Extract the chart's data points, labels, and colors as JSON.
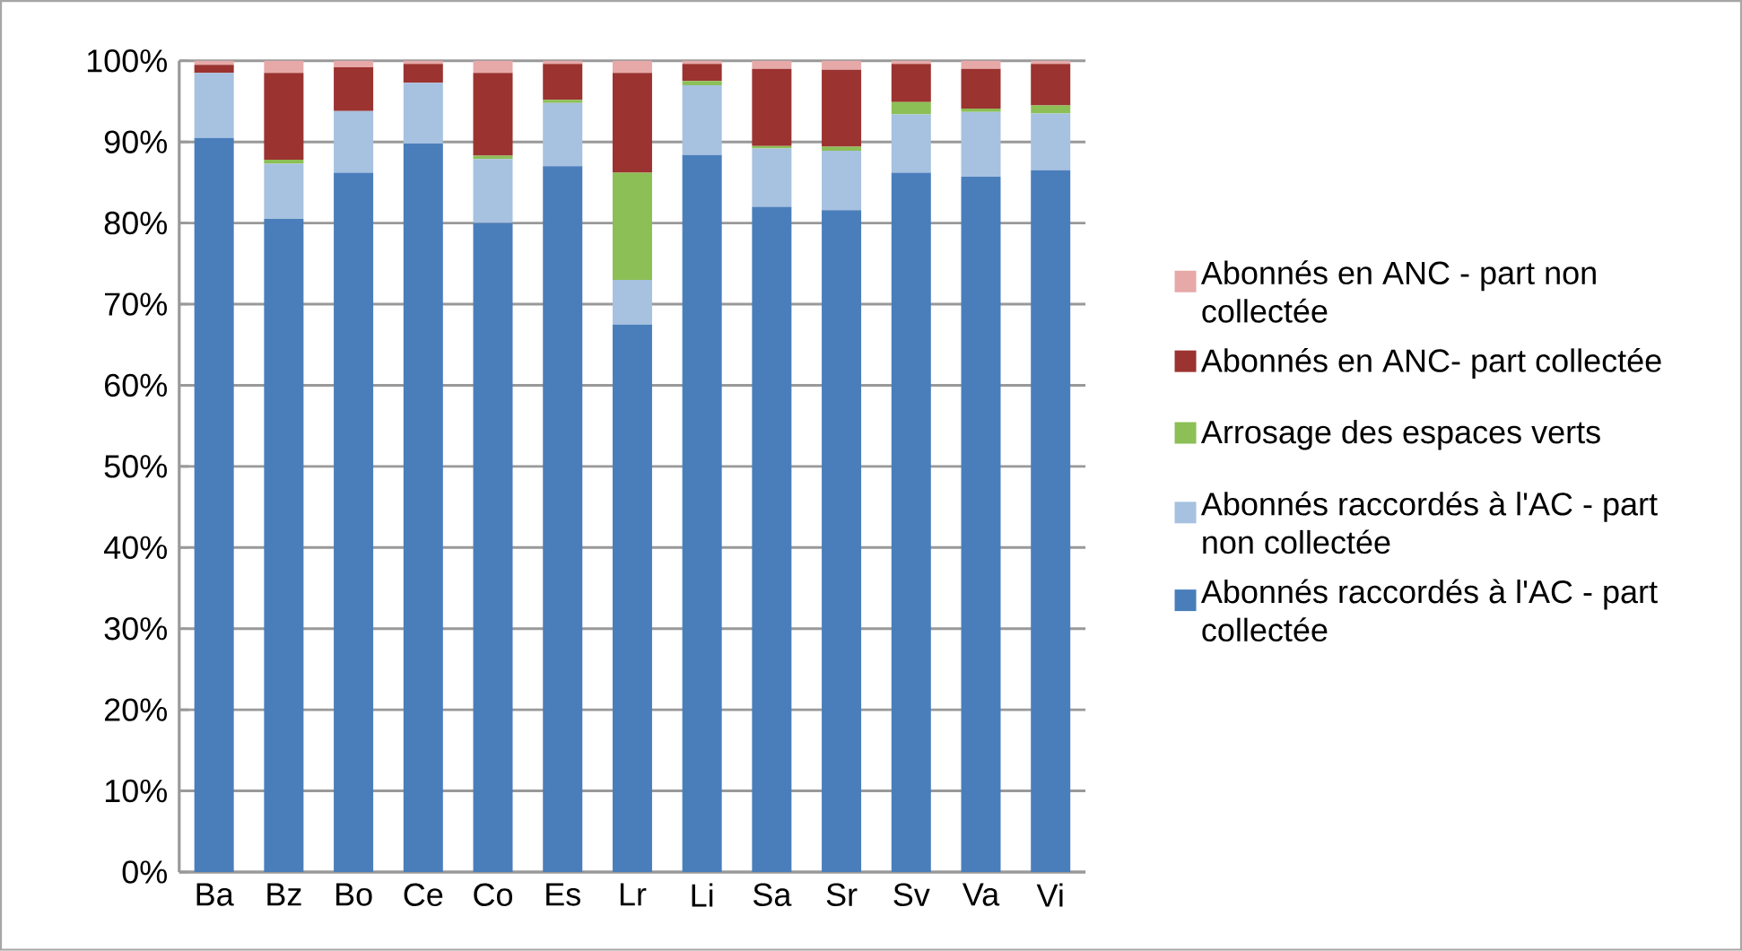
{
  "chart_data": {
    "type": "bar",
    "stacked": true,
    "categories": [
      "Ba",
      "Bz",
      "Bo",
      "Ce",
      "Co",
      "Es",
      "Lr",
      "Li",
      "Sa",
      "Sr",
      "Sv",
      "Va",
      "Vi"
    ],
    "series": [
      {
        "name": "Abonnés raccordés à l'AC - part collectée",
        "color": "#4a7ebb",
        "values": [
          90.5,
          80.5,
          86.2,
          89.8,
          80,
          87,
          67.5,
          88.4,
          82,
          81.6,
          86.2,
          85.7,
          86.5
        ]
      },
      {
        "name": "Abonnés raccordés à l'AC - part non collectée",
        "color": "#a7c1e0",
        "values": [
          8,
          6.8,
          7.6,
          7.5,
          7.9,
          7.8,
          5.5,
          8.6,
          7.2,
          7.3,
          7.2,
          8,
          7
        ]
      },
      {
        "name": "Arrosage des espaces verts",
        "color": "#8cbf56",
        "values": [
          0,
          0.5,
          0,
          0,
          0.4,
          0.4,
          13.2,
          0.5,
          0.3,
          0.5,
          1.5,
          0.4,
          1
        ]
      },
      {
        "name": "Abonnés en ANC- part collectée",
        "color": "#9b3330",
        "values": [
          1,
          10.7,
          5.4,
          2.3,
          10.2,
          4.4,
          12.3,
          2.1,
          9.5,
          9.5,
          4.7,
          4.9,
          5.1
        ]
      },
      {
        "name": "Abonnés en ANC - part non collectée",
        "color": "#e6a9a8",
        "values": [
          0.5,
          1.5,
          0.8,
          0.4,
          1.5,
          0.4,
          1.5,
          0.4,
          1,
          1.1,
          0.4,
          1,
          0.4
        ]
      }
    ],
    "ylim": [
      0,
      100
    ],
    "yticks": [
      {
        "value": 0,
        "label": "0%"
      },
      {
        "value": 10,
        "label": "10%"
      },
      {
        "value": 20,
        "label": "20%"
      },
      {
        "value": 30,
        "label": "30%"
      },
      {
        "value": 40,
        "label": "40%"
      },
      {
        "value": 50,
        "label": "50%"
      },
      {
        "value": 60,
        "label": "60%"
      },
      {
        "value": 70,
        "label": "70%"
      },
      {
        "value": 80,
        "label": "80%"
      },
      {
        "value": 90,
        "label": "90%"
      },
      {
        "value": 100,
        "label": "100%"
      }
    ],
    "grid": "y",
    "legend": "right"
  }
}
